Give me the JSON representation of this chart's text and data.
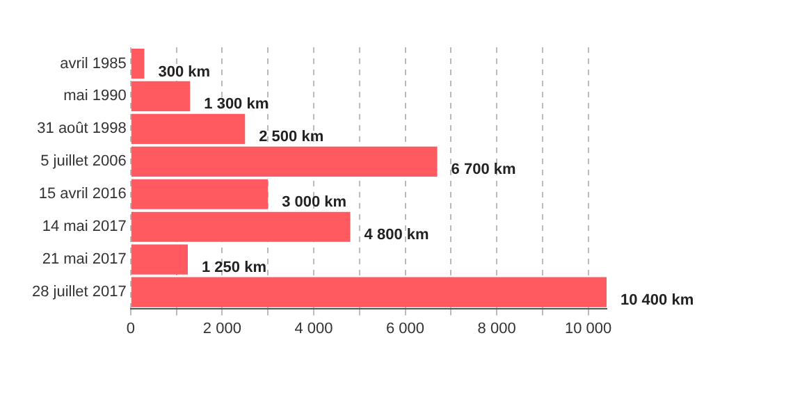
{
  "chart_data": {
    "type": "bar",
    "orientation": "horizontal",
    "categories": [
      "avril 1985",
      "mai 1990",
      "31 août 1998",
      "5 juillet 2006",
      "15 avril 2016",
      "14 mai 2017",
      "21 mai 2017",
      "28 juillet 2017"
    ],
    "values": [
      300,
      1300,
      2500,
      6700,
      3000,
      4800,
      1250,
      10400
    ],
    "value_labels": [
      "300 km",
      "1 300 km",
      "2 500 km",
      "6 700 km",
      "3 000 km",
      "4 800 km",
      "1 250 km",
      "10 400 km"
    ],
    "color": "#ff5a5f",
    "xlim": [
      0,
      10400
    ],
    "xticks": [
      0,
      {
        "value": 1000,
        "label": null
      },
      {
        "value": 2000,
        "label": "2 000"
      },
      {
        "value": 3000,
        "label": null
      },
      {
        "value": 4000,
        "label": "4 000"
      },
      {
        "value": 5000,
        "label": null
      },
      {
        "value": 6000,
        "label": "6 000"
      },
      {
        "value": 7000,
        "label": null
      },
      {
        "value": 8000,
        "label": "8 000"
      },
      {
        "value": 9000,
        "label": null
      },
      {
        "value": 10000,
        "label": "10 000"
      }
    ],
    "grid": "x",
    "legend": false
  }
}
